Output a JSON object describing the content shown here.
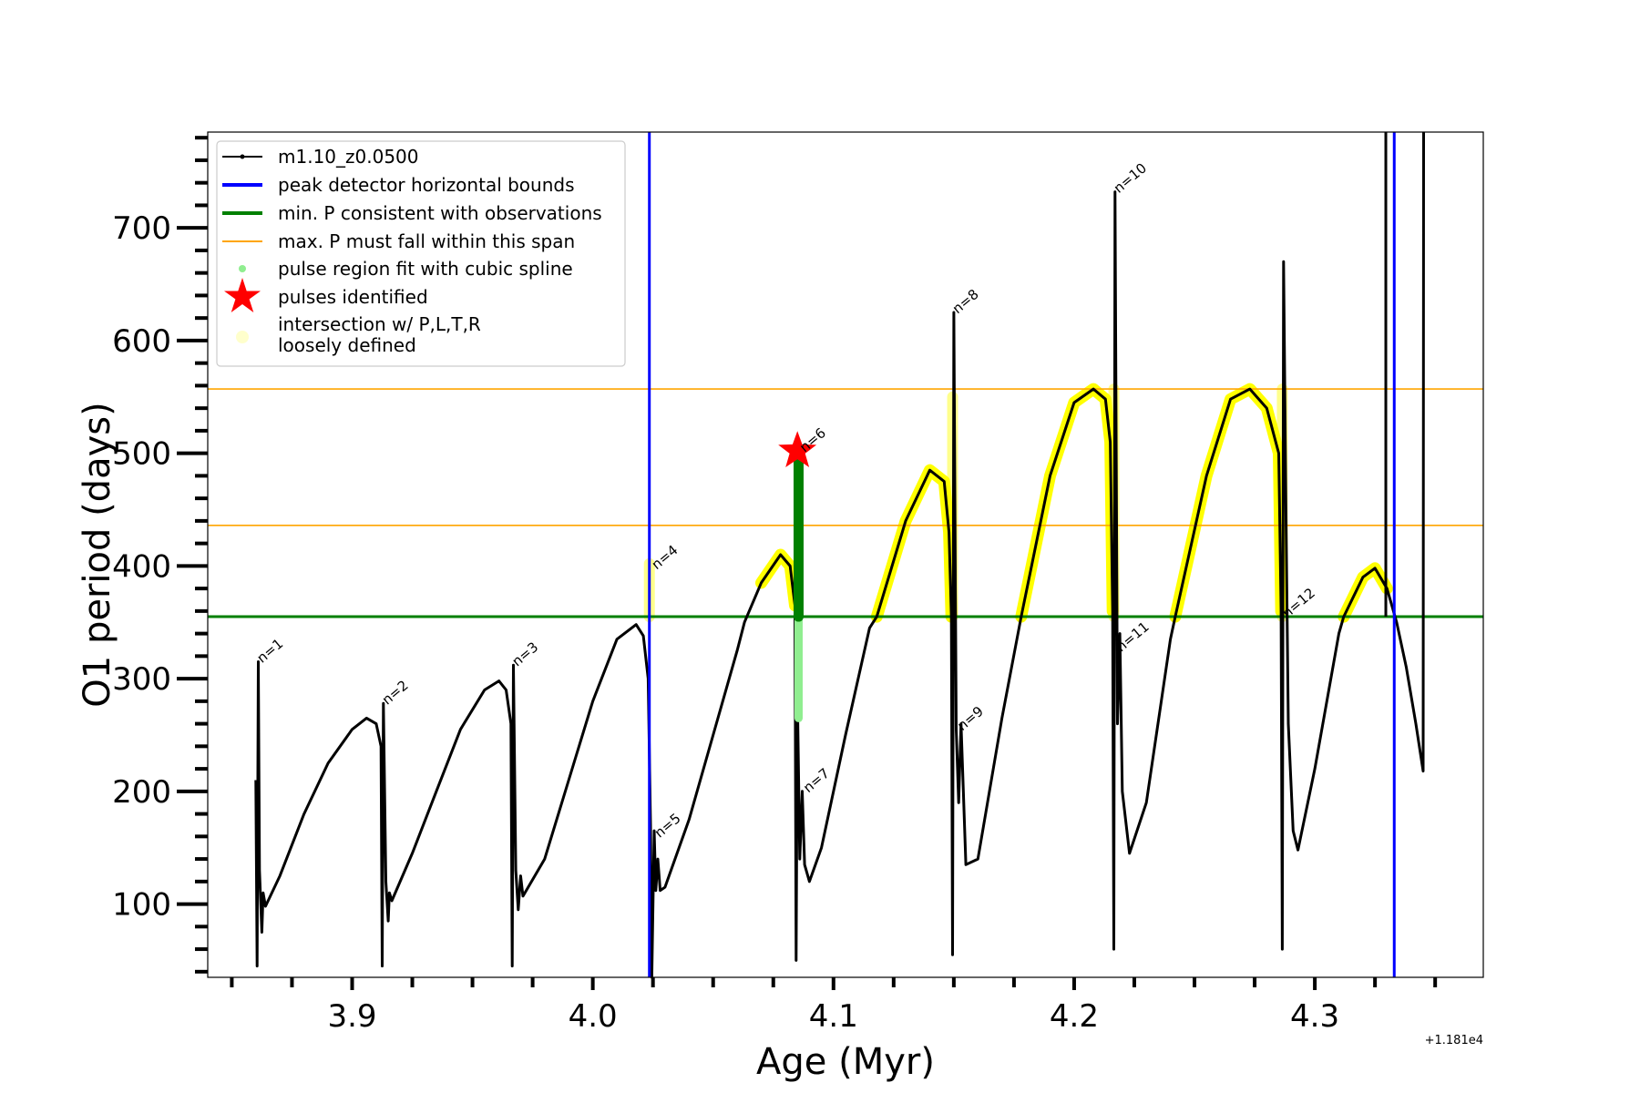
{
  "chart_data": {
    "type": "line",
    "xlabel": "Age (Myr)",
    "ylabel": "O1 period (days)",
    "x_offset_label": "+1.181e4",
    "xlim": [
      3.84,
      4.37
    ],
    "ylim": [
      35,
      785
    ],
    "x_ticks": [
      3.9,
      4.0,
      4.1,
      4.2,
      4.3
    ],
    "x_tick_labels": [
      "3.9",
      "4.0",
      "4.1",
      "4.2",
      "4.3"
    ],
    "y_ticks": [
      100,
      200,
      300,
      400,
      500,
      600,
      700
    ],
    "y_tick_labels": [
      "100",
      "200",
      "300",
      "400",
      "500",
      "600",
      "700"
    ],
    "series": [
      {
        "name": "m1.10_z0.0500",
        "color": "#000000",
        "points": [
          [
            3.86,
            210
          ],
          [
            3.8605,
            45
          ],
          [
            3.861,
            315
          ],
          [
            3.8615,
            130
          ],
          [
            3.8625,
            75
          ],
          [
            3.863,
            110
          ],
          [
            3.864,
            98
          ],
          [
            3.87,
            125
          ],
          [
            3.88,
            180
          ],
          [
            3.89,
            225
          ],
          [
            3.9,
            255
          ],
          [
            3.906,
            265
          ],
          [
            3.91,
            260
          ],
          [
            3.912,
            240
          ],
          [
            3.9125,
            45
          ],
          [
            3.913,
            278
          ],
          [
            3.914,
            120
          ],
          [
            3.915,
            85
          ],
          [
            3.9155,
            110
          ],
          [
            3.9165,
            103
          ],
          [
            3.925,
            145
          ],
          [
            3.935,
            200
          ],
          [
            3.945,
            255
          ],
          [
            3.955,
            290
          ],
          [
            3.961,
            298
          ],
          [
            3.964,
            290
          ],
          [
            3.966,
            260
          ],
          [
            3.9665,
            45
          ],
          [
            3.967,
            312
          ],
          [
            3.968,
            130
          ],
          [
            3.969,
            95
          ],
          [
            3.97,
            125
          ],
          [
            3.971,
            107
          ],
          [
            3.98,
            140
          ],
          [
            3.99,
            210
          ],
          [
            4.0,
            280
          ],
          [
            4.01,
            335
          ],
          [
            4.018,
            348
          ],
          [
            4.021,
            338
          ],
          [
            4.023,
            300
          ],
          [
            4.024,
            170
          ],
          [
            4.0245,
            35
          ],
          [
            4.0255,
            165
          ],
          [
            4.0262,
            112
          ],
          [
            4.027,
            140
          ],
          [
            4.028,
            112
          ],
          [
            4.03,
            115
          ],
          [
            4.04,
            175
          ],
          [
            4.05,
            250
          ],
          [
            4.06,
            325
          ],
          [
            4.063,
            350
          ],
          [
            4.07,
            385
          ],
          [
            4.078,
            410
          ],
          [
            4.082,
            400
          ],
          [
            4.084,
            365
          ],
          [
            4.0845,
            50
          ],
          [
            4.085,
            285
          ],
          [
            4.086,
            140
          ],
          [
            4.087,
            200
          ],
          [
            4.088,
            135
          ],
          [
            4.09,
            120
          ],
          [
            4.095,
            150
          ],
          [
            4.105,
            250
          ],
          [
            4.115,
            345
          ],
          [
            4.118,
            355
          ],
          [
            4.13,
            440
          ],
          [
            4.14,
            485
          ],
          [
            4.146,
            475
          ],
          [
            4.148,
            430
          ],
          [
            4.149,
            355
          ],
          [
            4.1495,
            55
          ],
          [
            4.15,
            625
          ],
          [
            4.151,
            255
          ],
          [
            4.152,
            190
          ],
          [
            4.153,
            260
          ],
          [
            4.155,
            135
          ],
          [
            4.16,
            140
          ],
          [
            4.17,
            265
          ],
          [
            4.178,
            355
          ],
          [
            4.19,
            480
          ],
          [
            4.2,
            545
          ],
          [
            4.208,
            557
          ],
          [
            4.213,
            548
          ],
          [
            4.215,
            510
          ],
          [
            4.216,
            360
          ],
          [
            4.2165,
            60
          ],
          [
            4.217,
            732
          ],
          [
            4.218,
            260
          ],
          [
            4.219,
            340
          ],
          [
            4.22,
            200
          ],
          [
            4.223,
            145
          ],
          [
            4.23,
            190
          ],
          [
            4.24,
            335
          ],
          [
            4.242,
            355
          ],
          [
            4.255,
            480
          ],
          [
            4.265,
            548
          ],
          [
            4.273,
            557
          ],
          [
            4.28,
            540
          ],
          [
            4.285,
            500
          ],
          [
            4.286,
            360
          ],
          [
            4.2865,
            60
          ],
          [
            4.287,
            670
          ],
          [
            4.288,
            450
          ],
          [
            4.289,
            260
          ],
          [
            4.291,
            165
          ],
          [
            4.293,
            148
          ],
          [
            4.3,
            220
          ],
          [
            4.31,
            340
          ],
          [
            4.312,
            355
          ],
          [
            4.32,
            390
          ],
          [
            4.325,
            398
          ],
          [
            4.33,
            380
          ],
          [
            4.334,
            350
          ],
          [
            4.338,
            310
          ],
          [
            4.342,
            260
          ],
          [
            4.345,
            218
          ],
          [
            4.3452,
            785
          ]
        ],
        "extra_segments": [
          [
            [
              4.3295,
              785
            ],
            [
              4.3295,
              355
            ]
          ]
        ]
      },
      {
        "name": "peak detector horizontal bounds",
        "color": "#0000ff",
        "vertical_lines_x": [
          4.0235,
          4.333
        ]
      },
      {
        "name": "min. P consistent with observations",
        "color": "#008000",
        "horizontal_line_y": 355
      },
      {
        "name": "max. P must fall within this span",
        "color": "#ffa500",
        "horizontal_lines_y": [
          436,
          557
        ]
      },
      {
        "name": "pulse region fit with cubic spline",
        "color": "#90ee90",
        "segment": [
          [
            4.0855,
            265
          ],
          [
            4.0855,
            500
          ]
        ]
      },
      {
        "name": "pulses identified",
        "color": "#ff0000",
        "points": [
          [
            4.085,
            502
          ]
        ]
      },
      {
        "name": "intersection w/ P,L,T,R\nloosely defined",
        "color": "#ffff00",
        "x_ranges": [
          [
            4.063,
            4.084
          ],
          [
            4.118,
            4.149
          ],
          [
            4.178,
            4.216
          ],
          [
            4.242,
            4.286
          ],
          [
            4.312,
            4.334
          ]
        ],
        "vertical_bands": [
          [
            4.0235,
            355,
            402
          ],
          [
            4.1495,
            355,
            550
          ],
          [
            4.2165,
            355,
            557
          ],
          [
            4.2865,
            355,
            557
          ]
        ]
      }
    ],
    "pulse_labels": [
      {
        "text": "n=1",
        "x": 3.861,
        "y": 315
      },
      {
        "text": "n=2",
        "x": 3.913,
        "y": 278
      },
      {
        "text": "n=3",
        "x": 3.967,
        "y": 312
      },
      {
        "text": "n=4",
        "x": 4.025,
        "y": 398
      },
      {
        "text": "n=5",
        "x": 4.0262,
        "y": 160
      },
      {
        "text": "n=6",
        "x": 4.0865,
        "y": 502
      },
      {
        "text": "n=7",
        "x": 4.088,
        "y": 200
      },
      {
        "text": "n=8",
        "x": 4.15,
        "y": 625
      },
      {
        "text": "n=9",
        "x": 4.152,
        "y": 255
      },
      {
        "text": "n=10",
        "x": 4.217,
        "y": 732
      },
      {
        "text": "n=11",
        "x": 4.218,
        "y": 325
      },
      {
        "text": "n=12",
        "x": 4.287,
        "y": 355
      }
    ],
    "legend": {
      "position": "upper-left",
      "entries": [
        {
          "label": "m1.10_z0.0500",
          "color": "#000000",
          "marker": "line-dots"
        },
        {
          "label": "peak detector horizontal bounds",
          "color": "#0000ff",
          "marker": "line"
        },
        {
          "label": "min. P consistent with observations",
          "color": "#008000",
          "marker": "line"
        },
        {
          "label": "max. P must fall within this span",
          "color": "#ffa500",
          "marker": "thin-line"
        },
        {
          "label": "pulse region fit with cubic spline",
          "color": "#90ee90",
          "marker": "dot"
        },
        {
          "label": "pulses identified",
          "color": "#ff0000",
          "marker": "star"
        },
        {
          "label": "intersection w/ P,L,T,R",
          "label2": "loosely defined",
          "color": "#ffffcc",
          "marker": "big-dot"
        }
      ]
    }
  }
}
